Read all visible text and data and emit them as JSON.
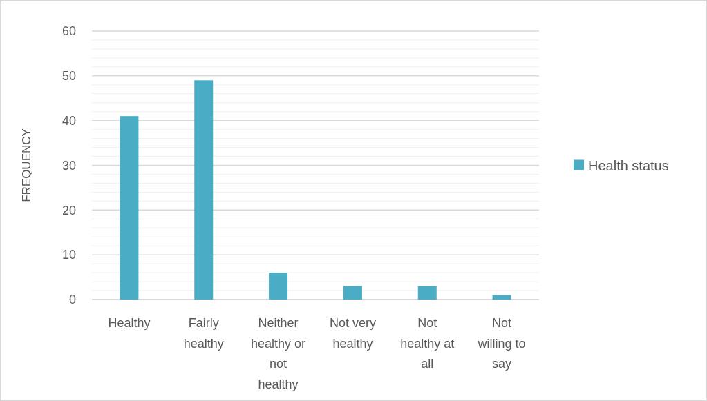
{
  "chart_data": {
    "type": "bar",
    "ylabel": "FREQUENCY",
    "categories": [
      "Healthy",
      "Fairly healthy",
      "Neither healthy or not healthy",
      "Not very healthy",
      "Not healthy at all",
      "Not willing to say"
    ],
    "series": [
      {
        "name": "Health status",
        "color": "#4bacc6",
        "values": [
          41,
          49,
          6,
          3,
          3,
          1
        ]
      }
    ],
    "ylim": [
      0,
      60
    ],
    "yticks": [
      0,
      {
        "value": 2,
        "label": null
      },
      {
        "value": 4,
        "label": null
      },
      {
        "value": 6,
        "label": null
      },
      {
        "value": 8,
        "label": null
      },
      10,
      {
        "value": 12,
        "label": null
      },
      {
        "value": 14,
        "label": null
      },
      {
        "value": 16,
        "label": null
      },
      {
        "value": 18,
        "label": null
      },
      20,
      {
        "value": 22,
        "label": null
      },
      {
        "value": 24,
        "label": null
      },
      {
        "value": 26,
        "label": null
      },
      {
        "value": 28,
        "label": null
      },
      30,
      {
        "value": 32,
        "label": null
      },
      {
        "value": 34,
        "label": null
      },
      {
        "value": 36,
        "label": null
      },
      {
        "value": 38,
        "label": null
      },
      40,
      {
        "value": 42,
        "label": null
      },
      {
        "value": 44,
        "label": null
      },
      {
        "value": 46,
        "label": null
      },
      {
        "value": 48,
        "label": null
      },
      50,
      {
        "value": 52,
        "label": null
      },
      {
        "value": 54,
        "label": null
      },
      {
        "value": 56,
        "label": null
      },
      {
        "value": 58,
        "label": null
      },
      60
    ],
    "grid": "y",
    "legend": "right"
  }
}
